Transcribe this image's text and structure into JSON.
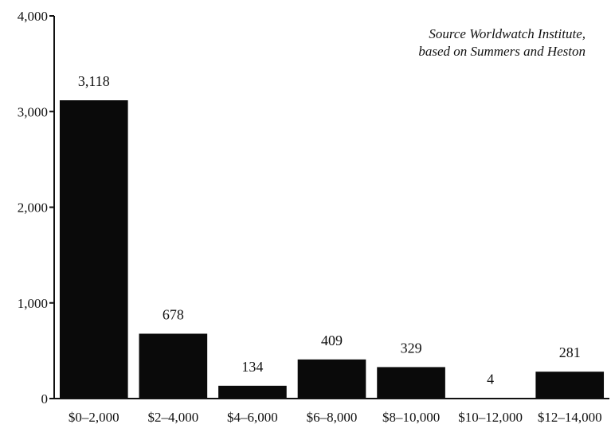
{
  "chart_data": {
    "type": "bar",
    "title": "",
    "xlabel": "",
    "ylabel": "",
    "categories": [
      "$0–2,000",
      "$2–4,000",
      "$4–6,000",
      "$6–8,000",
      "$8–10,000",
      "$10–12,000",
      "$12–14,000"
    ],
    "values": [
      3118,
      678,
      134,
      409,
      329,
      4,
      281
    ],
    "data_labels": [
      "3,118",
      "678",
      "134",
      "409",
      "329",
      "4",
      "281"
    ],
    "ylim": [
      0,
      4000
    ],
    "yticks": [
      0,
      1000,
      2000,
      3000,
      4000
    ],
    "ytick_labels": [
      "0",
      "1,000",
      "2,000",
      "3,000",
      "4,000"
    ],
    "grid": false,
    "bar_color": "#0a0a0a",
    "source_note": [
      "Source  Worldwatch Institute,",
      "based on Summers and Heston"
    ]
  }
}
